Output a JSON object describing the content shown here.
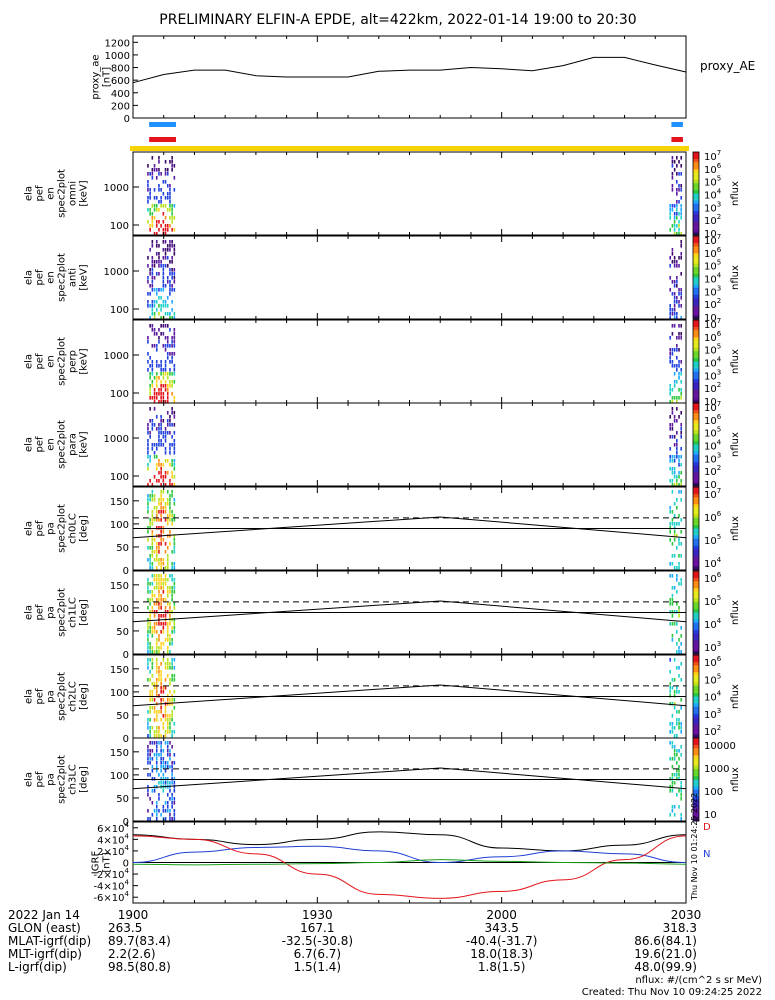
{
  "title": "PRELIMINARY ELFIN-A EPDE, alt=422km, 2022-01-14 19:00 to 20:30",
  "colors": {
    "blue_bar": "#1e90ff",
    "red_bar": "#e3141b",
    "yellow_bar": "#f7d300",
    "black": "#000000",
    "igrf_red": "#e3141b",
    "igrf_blue": "#1f3fd6",
    "igrf_green": "#1aa01a"
  },
  "chart_data": [
    {
      "name": "proxy_ae",
      "type": "line",
      "ylabel": "proxy_ae [nT]",
      "legend": "proxy_AE",
      "ylim": [
        0,
        1300
      ],
      "yticks": [
        "0",
        "200",
        "400",
        "600",
        "800",
        "1000",
        "1200"
      ],
      "x_min": [
        0,
        5,
        10,
        15,
        20,
        25,
        30,
        35,
        40,
        45,
        50,
        55,
        60,
        65,
        70,
        75,
        80,
        85,
        90
      ],
      "values": [
        560,
        690,
        760,
        760,
        670,
        650,
        650,
        650,
        740,
        760,
        760,
        800,
        780,
        750,
        830,
        960,
        960,
        840,
        730
      ]
    },
    {
      "name": "spectrograms",
      "type": "heatmap",
      "panels": [
        {
          "label": [
            "ela",
            "pef",
            "en",
            "spec2plot",
            "omni",
            "[keV]"
          ],
          "cbar": [
            "10^7",
            "10^6",
            "10^5",
            "10^4",
            "10^3",
            "10^2",
            "10"
          ],
          "cbar_label": "nflux",
          "yticks": [
            "100",
            "1000"
          ]
        },
        {
          "label": [
            "ela",
            "pef",
            "en",
            "spec2plot",
            "anti",
            "[keV]"
          ],
          "cbar": [
            "10^7",
            "10^6",
            "10^5",
            "10^4",
            "10^3",
            "10^2",
            "10"
          ],
          "cbar_label": "nflux",
          "yticks": [
            "100",
            "1000"
          ]
        },
        {
          "label": [
            "ela",
            "pef",
            "en",
            "spec2plot",
            "perp",
            "[keV]"
          ],
          "cbar": [
            "10^7",
            "10^6",
            "10^5",
            "10^4",
            "10^3",
            "10^2",
            "10"
          ],
          "cbar_label": "nflux",
          "yticks": [
            "100",
            "1000"
          ]
        },
        {
          "label": [
            "ela",
            "pef",
            "en",
            "spec2plot",
            "para",
            "[keV]"
          ],
          "cbar": [
            "10^7",
            "10^6",
            "10^5",
            "10^4",
            "10^3",
            "10^2",
            "10"
          ],
          "cbar_label": "nflux",
          "yticks": [
            "100",
            "1000"
          ]
        }
      ],
      "active_windows_min": [
        [
          1,
          7
        ],
        [
          86,
          89.5
        ]
      ]
    },
    {
      "name": "pitch_angle",
      "type": "heatmap",
      "panels": [
        {
          "label": [
            "ela",
            "pef",
            "pa",
            "spec2plot",
            "ch0LC",
            "[deg]"
          ],
          "cbar": [
            "10^7",
            "10^6",
            "10^5",
            "10^4"
          ],
          "cbar_label": "nflux",
          "yticks": [
            "0",
            "50",
            "100",
            "150"
          ]
        },
        {
          "label": [
            "ela",
            "pef",
            "pa",
            "spec2plot",
            "ch1LC",
            "[deg]"
          ],
          "cbar": [
            "10^6",
            "10^5",
            "10^4",
            "10^3"
          ],
          "cbar_label": "nflux",
          "yticks": [
            "0",
            "50",
            "100",
            "150"
          ]
        },
        {
          "label": [
            "ela",
            "pef",
            "pa",
            "spec2plot",
            "ch2LC",
            "[deg]"
          ],
          "cbar": [
            "10^6",
            "10^5",
            "10^4",
            "10^3",
            "10^2"
          ],
          "cbar_label": "nflux",
          "yticks": [
            "0",
            "50",
            "100",
            "150"
          ]
        },
        {
          "label": [
            "ela",
            "pef",
            "pa",
            "spec2plot",
            "ch3LC",
            "[deg]"
          ],
          "cbar": [
            "10000",
            "1000",
            "100",
            "10"
          ],
          "cbar_label": "nflux",
          "yticks": [
            "0",
            "50",
            "100",
            "150"
          ]
        }
      ],
      "ylim": [
        0,
        180
      ],
      "lc_line_x_min": [
        0,
        50,
        90
      ],
      "lc_line_values": [
        70,
        115,
        70
      ],
      "dashed_level": 113,
      "solid_level": 90
    },
    {
      "name": "IGRF",
      "type": "line",
      "ylabel": "IGRF [nT]",
      "ylim": [
        -70000,
        70000
      ],
      "yticks": [
        "-6×10^4",
        "-4×10^4",
        "-2×10^4",
        "0",
        "2×10^4",
        "4×10^4",
        "6×10^4"
      ],
      "legend": [
        "D",
        "N"
      ],
      "x_min": [
        0,
        10,
        20,
        30,
        40,
        50,
        60,
        70,
        80,
        90
      ],
      "series": [
        {
          "name": "black",
          "values": [
            48000,
            40000,
            31000,
            40000,
            53000,
            48000,
            25000,
            20000,
            30000,
            48000
          ]
        },
        {
          "name": "blue",
          "values": [
            0,
            18000,
            26000,
            28000,
            20000,
            0,
            10000,
            20000,
            15000,
            0
          ]
        },
        {
          "name": "red",
          "values": [
            46000,
            40000,
            15000,
            -20000,
            -55000,
            -62000,
            -50000,
            -30000,
            5000,
            46000
          ]
        },
        {
          "name": "green",
          "values": [
            -3000,
            -4000,
            -3000,
            -2000,
            0,
            5000,
            2000,
            0,
            -1000,
            -3000
          ]
        }
      ]
    }
  ],
  "xaxis": {
    "ticks": [
      "1900",
      "1930",
      "2000",
      "2030"
    ],
    "rows": [
      {
        "label": "2022 Jan 14",
        "vals": [
          "",
          "",
          "",
          ""
        ]
      },
      {
        "label": "GLON (east)",
        "vals": [
          "263.5",
          "167.1",
          "343.5",
          "318.3"
        ]
      },
      {
        "label": "MLAT-igrf(dip)",
        "vals": [
          "89.7(83.4)",
          "-32.5(-30.8)",
          "-40.4(-31.7)",
          "86.6(84.1)"
        ]
      },
      {
        "label": "MLT-igrf(dip)",
        "vals": [
          "2.2(2.6)",
          "6.7(6.7)",
          "18.0(18.3)",
          "19.6(21.0)"
        ]
      },
      {
        "label": "L-igrf(dip)",
        "vals": [
          "98.5(80.8)",
          "1.5(1.4)",
          "1.8(1.5)",
          "48.0(99.9)"
        ]
      }
    ]
  },
  "footer": {
    "units": "nflux: #/(cm^2 s sr MeV)",
    "created": "Created: Thu Nov 10 09:24:25 2022",
    "side_stamp": "Thu Nov 10 01:24:25 2022"
  }
}
